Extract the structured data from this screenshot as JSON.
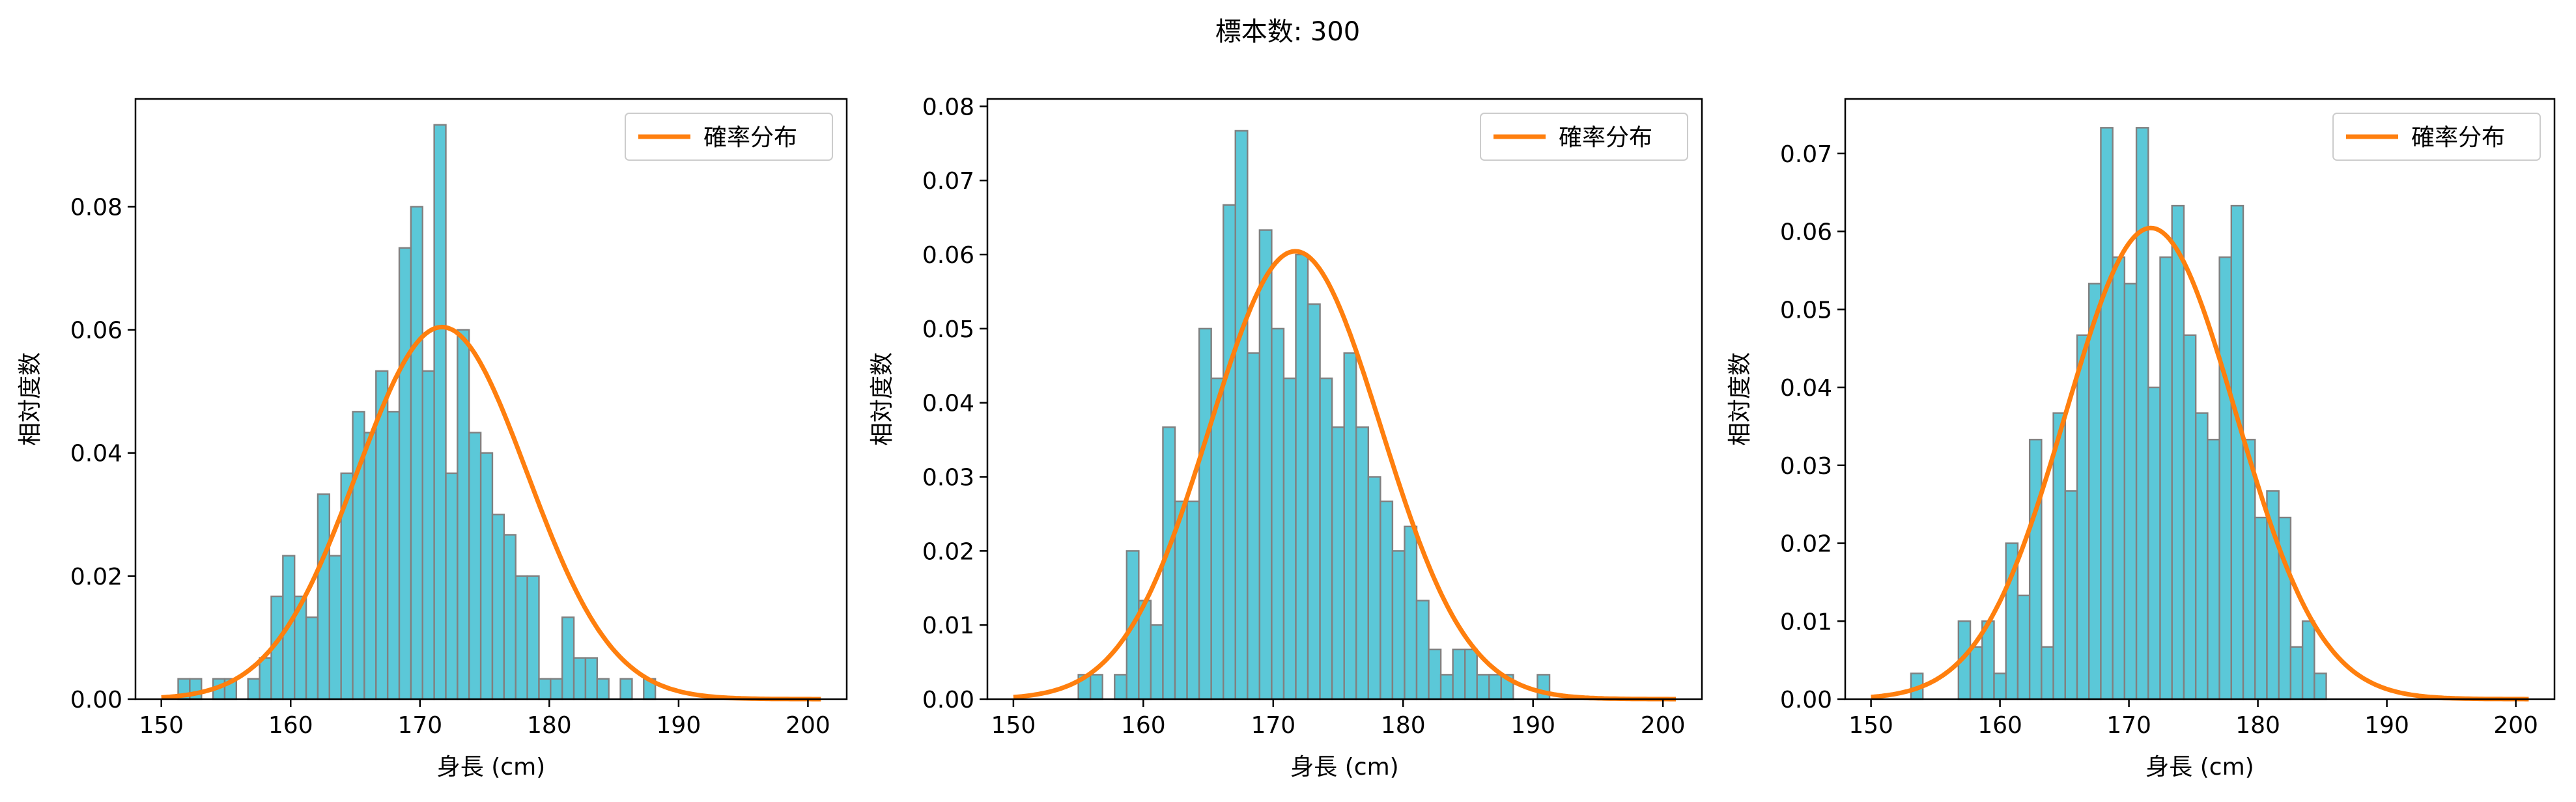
{
  "figure_title": "標本数: 300",
  "colors": {
    "bar_fill": "#5BC8D8",
    "bar_edge": "#808080",
    "pdf_line": "#FF7F0E"
  },
  "chart_data": [
    {
      "type": "bar",
      "xlabel": "身長 (cm)",
      "ylabel": "相対度数",
      "xlim": [
        148,
        203
      ],
      "ylim": [
        0,
        0.0975
      ],
      "xticks": [
        150,
        160,
        170,
        180,
        190,
        200
      ],
      "yticks": [
        0.0,
        0.02,
        0.04,
        0.06,
        0.08
      ],
      "ytick_labels": [
        "0.00",
        "0.02",
        "0.04",
        "0.06",
        "0.08"
      ],
      "legend": {
        "label": "確率分布",
        "position": "top-right"
      },
      "bin_start": 151.3,
      "bin_width": 0.9,
      "values": [
        0.0033,
        0.0033,
        0.0,
        0.0033,
        0.0033,
        0.0,
        0.0033,
        0.0067,
        0.0167,
        0.0233,
        0.0167,
        0.0133,
        0.0333,
        0.0233,
        0.0367,
        0.0467,
        0.0433,
        0.0533,
        0.0467,
        0.0733,
        0.08,
        0.0533,
        0.0933,
        0.0367,
        0.06,
        0.0433,
        0.04,
        0.03,
        0.0267,
        0.02,
        0.02,
        0.0033,
        0.0033,
        0.0133,
        0.0067,
        0.0067,
        0.0033,
        0.0,
        0.0033,
        0.0,
        0.0033
      ],
      "pdf": {
        "mean": 171.7,
        "std": 6.6,
        "x_range": [
          150,
          201
        ]
      }
    },
    {
      "type": "bar",
      "xlabel": "身長 (cm)",
      "ylabel": "相対度数",
      "xlim": [
        148,
        203
      ],
      "ylim": [
        0,
        0.081
      ],
      "xticks": [
        150,
        160,
        170,
        180,
        190,
        200
      ],
      "yticks": [
        0.0,
        0.01,
        0.02,
        0.03,
        0.04,
        0.05,
        0.06,
        0.07,
        0.08
      ],
      "ytick_labels": [
        "0.00",
        "0.01",
        "0.02",
        "0.03",
        "0.04",
        "0.05",
        "0.06",
        "0.07",
        "0.08"
      ],
      "legend": {
        "label": "確率分布",
        "position": "top-right"
      },
      "bin_start": 155.0,
      "bin_width": 0.93,
      "values": [
        0.0033,
        0.0033,
        0.0,
        0.0033,
        0.02,
        0.0133,
        0.01,
        0.0367,
        0.0267,
        0.0267,
        0.05,
        0.0433,
        0.0667,
        0.0767,
        0.0467,
        0.0633,
        0.05,
        0.0433,
        0.06,
        0.0533,
        0.0433,
        0.0367,
        0.0467,
        0.0367,
        0.03,
        0.0267,
        0.02,
        0.0233,
        0.0133,
        0.0067,
        0.0033,
        0.0067,
        0.0067,
        0.0033,
        0.0033,
        0.0033,
        0.0,
        0.0,
        0.0033
      ],
      "pdf": {
        "mean": 171.7,
        "std": 6.6,
        "x_range": [
          150,
          201
        ]
      }
    },
    {
      "type": "bar",
      "xlabel": "身長 (cm)",
      "ylabel": "相対度数",
      "xlim": [
        148,
        203
      ],
      "ylim": [
        0,
        0.077
      ],
      "xticks": [
        150,
        160,
        170,
        180,
        190,
        200
      ],
      "yticks": [
        0.0,
        0.01,
        0.02,
        0.03,
        0.04,
        0.05,
        0.06,
        0.07
      ],
      "ytick_labels": [
        "0.00",
        "0.01",
        "0.02",
        "0.03",
        "0.04",
        "0.05",
        "0.06",
        "0.07"
      ],
      "legend": {
        "label": "確率分布",
        "position": "top-right"
      },
      "bin_start": 153.1,
      "bin_width": 0.92,
      "values": [
        0.0033,
        0.0,
        0.0,
        0.0,
        0.01,
        0.0067,
        0.01,
        0.0033,
        0.02,
        0.0133,
        0.0333,
        0.0067,
        0.0367,
        0.0267,
        0.0467,
        0.0533,
        0.0733,
        0.0567,
        0.0533,
        0.0733,
        0.04,
        0.0567,
        0.0633,
        0.0467,
        0.0367,
        0.0333,
        0.0567,
        0.0633,
        0.0333,
        0.0233,
        0.0267,
        0.0233,
        0.0067,
        0.01,
        0.0033,
        0.0
      ],
      "pdf": {
        "mean": 171.7,
        "std": 6.6,
        "x_range": [
          150,
          201
        ]
      }
    }
  ]
}
